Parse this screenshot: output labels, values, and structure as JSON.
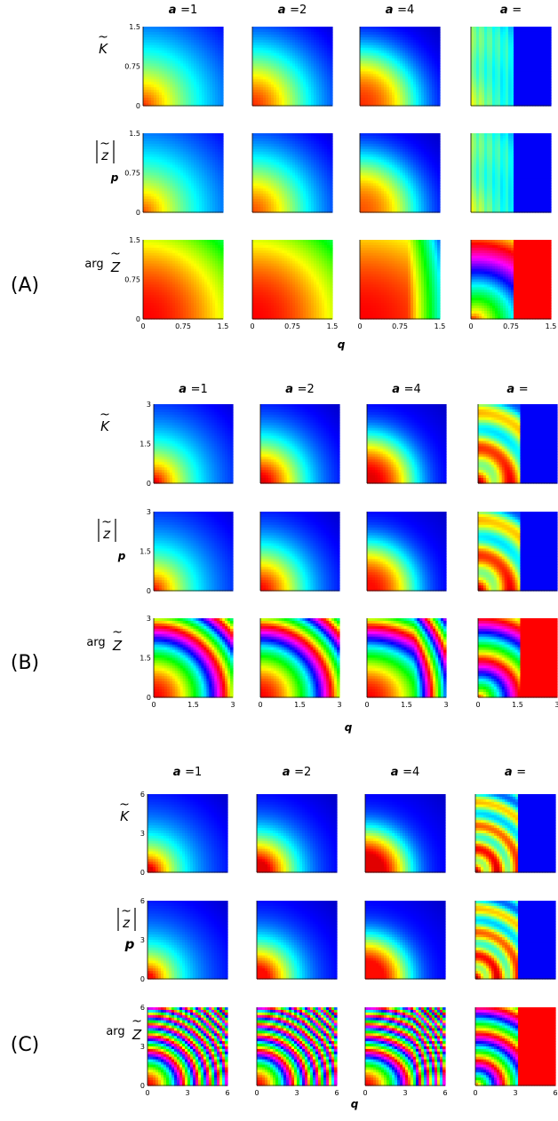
{
  "chart_data": [
    {
      "type": "heatmap",
      "panel_label": "(A)",
      "column_titles": [
        "a =1",
        "a =2",
        "a =4",
        "a ="
      ],
      "a_values": [
        1,
        2,
        4,
        null
      ],
      "row_labels": [
        {
          "prefix": "",
          "symbol": "K",
          "tilde": "~",
          "bars": false
        },
        {
          "prefix": "",
          "symbol": "z",
          "tilde": "~",
          "bars": true
        },
        {
          "prefix": "arg",
          "symbol": "Z",
          "tilde": "~",
          "bars": false
        }
      ],
      "row_quantities": [
        "|K̃|",
        "|z̃|",
        "arg Z̃"
      ],
      "ylabel": "p",
      "xlabel": "q",
      "xlim": [
        0,
        1.5
      ],
      "ylim": [
        0,
        1.5
      ],
      "yticks": [
        "0",
        "0.75",
        "1.5"
      ],
      "xticks": [
        "0",
        "0.75",
        "1.5"
      ],
      "last_col_cutoff_q": 0.8
    },
    {
      "type": "heatmap",
      "panel_label": "(B)",
      "column_titles": [
        "a =1",
        "a =2",
        "a =4",
        "a ="
      ],
      "a_values": [
        1,
        2,
        4,
        null
      ],
      "row_labels": [
        {
          "prefix": "",
          "symbol": "K",
          "tilde": "~",
          "bars": false
        },
        {
          "prefix": "",
          "symbol": "z",
          "tilde": "~",
          "bars": true
        },
        {
          "prefix": "arg",
          "symbol": "Z",
          "tilde": "~",
          "bars": false
        }
      ],
      "row_quantities": [
        "|K̃|",
        "|z̃|",
        "arg Z̃"
      ],
      "ylabel": "p",
      "xlabel": "q",
      "xlim": [
        0,
        3
      ],
      "ylim": [
        0,
        3
      ],
      "yticks": [
        "0",
        "1.5",
        "3"
      ],
      "xticks": [
        "0",
        "1.5",
        "3"
      ],
      "last_col_cutoff_q": 1.6
    },
    {
      "type": "heatmap",
      "panel_label": "(C)",
      "column_titles": [
        "a =1",
        "a =2",
        "a =4",
        "a ="
      ],
      "a_values": [
        1,
        2,
        4,
        null
      ],
      "row_labels": [
        {
          "prefix": "",
          "symbol": "K",
          "tilde": "~",
          "bars": false
        },
        {
          "prefix": "",
          "symbol": "z",
          "tilde": "~",
          "bars": true
        },
        {
          "prefix": "arg",
          "symbol": "Z",
          "tilde": "~",
          "bars": false
        }
      ],
      "row_quantities": [
        "|K̃|",
        "|z̃|",
        "arg Z̃"
      ],
      "ylabel": "p",
      "xlabel": "q",
      "xlim": [
        0,
        6
      ],
      "ylim": [
        0,
        6
      ],
      "yticks": [
        "0",
        "3",
        "6"
      ],
      "xticks": [
        "0",
        "3",
        "6"
      ],
      "last_col_cutoff_q": 3.2
    }
  ]
}
